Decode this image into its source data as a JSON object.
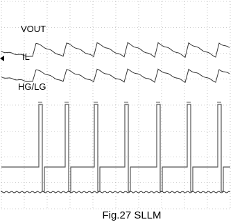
{
  "labels": {
    "vout": "VOUT",
    "il": "IL",
    "hg_lg": "HG/LG"
  },
  "caption": "Fig.27 SLLM"
}
